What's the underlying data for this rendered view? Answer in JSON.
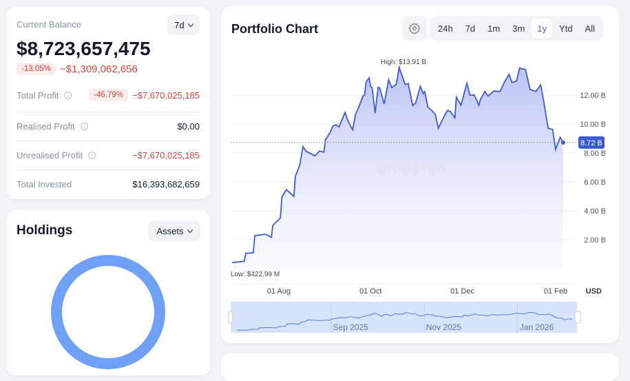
{
  "balance": {
    "label": "Current Balance",
    "period": "7d",
    "value": "$8,723,657,475",
    "change_pct": "-13.05%",
    "change_abs": "−$1,309,062,656",
    "rows": [
      {
        "label": "Total Profit",
        "badge": "-46.79%",
        "value": "−$7,670,025,185",
        "negative": true
      },
      {
        "label": "Realised Profit",
        "value": "$0.00",
        "negative": false
      },
      {
        "label": "Unrealised Profit",
        "value": "−$7,670,025,185",
        "negative": true
      },
      {
        "label": "Total Invested",
        "value": "$16,393,682,659",
        "negative": false
      }
    ]
  },
  "holdings": {
    "title": "Holdings",
    "selector": "Assets",
    "donut_color": "#6ea0f5"
  },
  "chart": {
    "title": "Portfolio Chart",
    "settings_icon": "gear-icon",
    "timeframes": [
      "24h",
      "7d",
      "1m",
      "3m",
      "1y",
      "Ytd",
      "All"
    ],
    "active_timeframe": "1y",
    "currency": "USD",
    "watermark": "DropsTab",
    "accent": "#3d5bd1"
  },
  "chart_data": {
    "type": "area",
    "high_label": "High: $13.91 B",
    "low_label": "Low: $422.99 M",
    "current_label": "8.72 B",
    "current_value": 8.72,
    "y_ticks": [
      {
        "v": 2,
        "label": "2.00 B"
      },
      {
        "v": 4,
        "label": "4.00 B"
      },
      {
        "v": 6,
        "label": "6.00 B"
      },
      {
        "v": 8,
        "label": "8.00 B"
      },
      {
        "v": 10,
        "label": "10.00 B"
      },
      {
        "v": 12,
        "label": "12.00 B"
      }
    ],
    "x_ticks": [
      {
        "d": "2025-08-01",
        "label": "01 Aug"
      },
      {
        "d": "2025-10-01",
        "label": "01 Oct"
      },
      {
        "d": "2025-12-01",
        "label": "01 Dec"
      },
      {
        "d": "2026-02-01",
        "label": "01 Feb"
      }
    ],
    "navigator_ticks": [
      {
        "d": "2025-09-01",
        "label": "Sep 2025"
      },
      {
        "d": "2025-11-01",
        "label": "Nov 2025"
      },
      {
        "d": "2026-01-01",
        "label": "Jan 2026"
      }
    ],
    "yunit": "B USD",
    "series": [
      [
        "2025-07-01",
        0.42
      ],
      [
        "2025-07-09",
        0.51
      ],
      [
        "2025-07-10",
        1.06
      ],
      [
        "2025-07-15",
        1.1
      ],
      [
        "2025-07-16",
        2.28
      ],
      [
        "2025-07-23",
        2.38
      ],
      [
        "2025-07-27",
        2.17
      ],
      [
        "2025-07-28",
        3.0
      ],
      [
        "2025-08-02",
        3.5
      ],
      [
        "2025-08-03",
        4.95
      ],
      [
        "2025-08-06",
        5.46
      ],
      [
        "2025-08-11",
        5.0
      ],
      [
        "2025-08-12",
        6.38
      ],
      [
        "2025-08-15",
        7.2
      ],
      [
        "2025-08-17",
        8.44
      ],
      [
        "2025-08-19",
        8.13
      ],
      [
        "2025-08-25",
        7.8
      ],
      [
        "2025-08-28",
        8.13
      ],
      [
        "2025-08-31",
        8.05
      ],
      [
        "2025-09-01",
        8.92
      ],
      [
        "2025-09-04",
        9.4
      ],
      [
        "2025-09-06",
        9.87
      ],
      [
        "2025-09-08",
        9.95
      ],
      [
        "2025-09-10",
        9.8
      ],
      [
        "2025-09-14",
        10.8
      ],
      [
        "2025-09-16",
        10.2
      ],
      [
        "2025-09-19",
        9.6
      ],
      [
        "2025-09-21",
        10.67
      ],
      [
        "2025-09-23",
        11.14
      ],
      [
        "2025-09-26",
        11.94
      ],
      [
        "2025-09-27",
        12.0
      ],
      [
        "2025-09-28",
        12.9
      ],
      [
        "2025-09-30",
        13.2
      ],
      [
        "2025-10-01",
        12.57
      ],
      [
        "2025-10-02",
        12.5
      ],
      [
        "2025-10-04",
        10.75
      ],
      [
        "2025-10-06",
        12.54
      ],
      [
        "2025-10-07",
        12.5
      ],
      [
        "2025-10-10",
        11.38
      ],
      [
        "2025-10-13",
        13.05
      ],
      [
        "2025-10-15",
        12.52
      ],
      [
        "2025-10-18",
        12.73
      ],
      [
        "2025-10-20",
        13.91
      ],
      [
        "2025-10-24",
        12.73
      ],
      [
        "2025-10-26",
        12.8
      ],
      [
        "2025-10-29",
        11.27
      ],
      [
        "2025-10-31",
        11.46
      ],
      [
        "2025-11-03",
        12.6
      ],
      [
        "2025-11-05",
        12.1
      ],
      [
        "2025-11-06",
        12.25
      ],
      [
        "2025-11-08",
        11.17
      ],
      [
        "2025-11-11",
        10.9
      ],
      [
        "2025-11-13",
        10.67
      ],
      [
        "2025-11-15",
        9.71
      ],
      [
        "2025-11-18",
        10.35
      ],
      [
        "2025-11-21",
        10.94
      ],
      [
        "2025-11-23",
        10.86
      ],
      [
        "2025-11-26",
        10.43
      ],
      [
        "2025-11-27",
        11.86
      ],
      [
        "2025-11-30",
        11.3
      ],
      [
        "2025-12-04",
        12.81
      ],
      [
        "2025-12-06",
        12.0
      ],
      [
        "2025-12-09",
        12.0
      ],
      [
        "2025-12-12",
        11.3
      ],
      [
        "2025-12-13",
        11.7
      ],
      [
        "2025-12-16",
        12.25
      ],
      [
        "2025-12-18",
        11.94
      ],
      [
        "2025-12-22",
        12.28
      ],
      [
        "2025-12-26",
        12.25
      ],
      [
        "2025-12-29",
        12.9
      ],
      [
        "2026-01-01",
        13.44
      ],
      [
        "2026-01-03",
        12.86
      ],
      [
        "2026-01-06",
        12.97
      ],
      [
        "2026-01-08",
        13.87
      ],
      [
        "2026-01-12",
        13.76
      ],
      [
        "2026-01-15",
        12.38
      ],
      [
        "2026-01-19",
        12.25
      ],
      [
        "2026-01-22",
        12.7
      ],
      [
        "2026-01-24",
        11.62
      ],
      [
        "2026-01-27",
        9.71
      ],
      [
        "2026-01-30",
        9.63
      ],
      [
        "2026-02-01",
        8.25
      ],
      [
        "2026-02-04",
        9.08
      ],
      [
        "2026-02-06",
        8.72
      ]
    ]
  }
}
